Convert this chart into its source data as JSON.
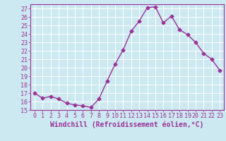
{
  "x": [
    0,
    1,
    2,
    3,
    4,
    5,
    6,
    7,
    8,
    9,
    10,
    11,
    12,
    13,
    14,
    15,
    16,
    17,
    18,
    19,
    20,
    21,
    22,
    23
  ],
  "y": [
    17.0,
    16.4,
    16.6,
    16.3,
    15.8,
    15.6,
    15.5,
    15.3,
    16.3,
    18.4,
    20.4,
    22.1,
    24.3,
    25.5,
    27.1,
    27.2,
    25.3,
    26.1,
    24.5,
    23.9,
    23.0,
    21.7,
    21.0,
    19.7
  ],
  "line_color": "#993399",
  "marker": "D",
  "markersize": 2.5,
  "linewidth": 1.0,
  "xlabel": "Windchill (Refroidissement éolien,°C)",
  "xlim": [
    -0.5,
    23.5
  ],
  "ylim": [
    15,
    27.5
  ],
  "yticks": [
    15,
    16,
    17,
    18,
    19,
    20,
    21,
    22,
    23,
    24,
    25,
    26,
    27
  ],
  "xticks": [
    0,
    1,
    2,
    3,
    4,
    5,
    6,
    7,
    8,
    9,
    10,
    11,
    12,
    13,
    14,
    15,
    16,
    17,
    18,
    19,
    20,
    21,
    22,
    23
  ],
  "bg_color": "#cce8f0",
  "grid_color": "#ffffff",
  "tick_color": "#993399",
  "label_color": "#993399",
  "xlabel_fontsize": 7,
  "tick_fontsize": 6
}
